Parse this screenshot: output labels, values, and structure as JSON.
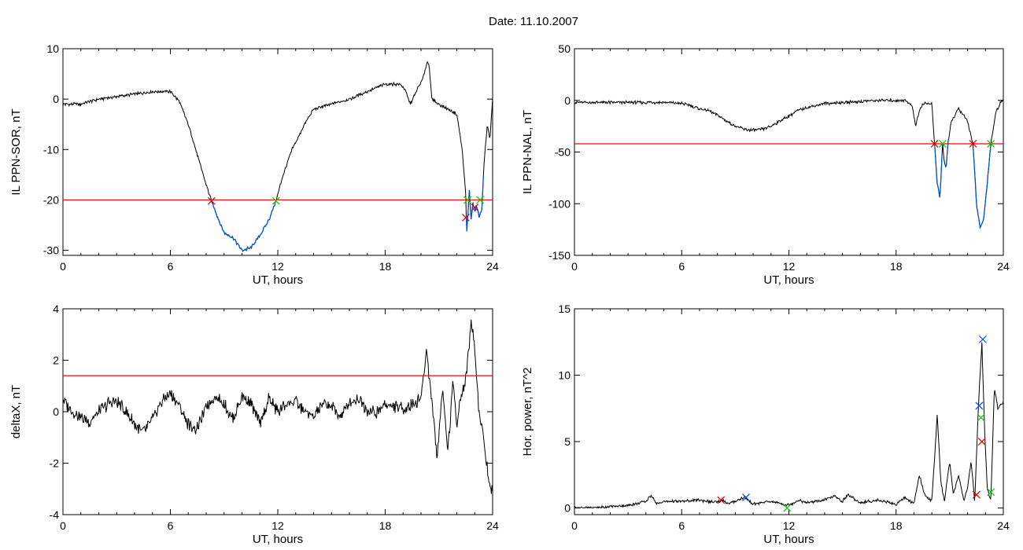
{
  "figure": {
    "title": "Date:  11.10.2007"
  },
  "colors": {
    "signal": "#000000",
    "threshold": "#ff0000",
    "event": "#0055cc",
    "marker_start": "#dd0000",
    "marker_end": "#00cc00",
    "marker_peak": "#0044ee"
  },
  "chart_data": [
    {
      "id": "p1",
      "type": "line",
      "xlabel": "UT, hours",
      "ylabel": "IL PPN-SOR, nT",
      "xlim": [
        0,
        24
      ],
      "ylim": [
        -31,
        10
      ],
      "xticks": [
        0,
        6,
        12,
        18,
        24
      ],
      "yticks": [
        -30,
        -20,
        -10,
        0,
        10
      ],
      "threshold": -20,
      "series": [
        {
          "x": [
            0,
            1,
            2,
            3,
            4,
            5,
            6,
            6.5,
            7,
            7.5,
            8,
            8.3,
            8.7,
            9,
            9.5,
            10,
            10.5,
            11,
            11.5,
            11.9,
            12.3,
            12.8,
            13.5,
            14,
            15,
            16,
            17,
            18,
            18.8,
            19.1,
            19.4,
            19.8,
            20.1,
            20.35,
            20.45,
            20.6,
            21,
            21.5,
            22,
            22.3,
            22.5,
            22.55,
            22.7,
            22.8,
            22.9,
            23.0,
            23.1,
            23.25,
            23.4,
            23.5,
            23.7,
            23.85,
            24
          ],
          "y": [
            -1,
            -1,
            0,
            0.5,
            1,
            1.5,
            1.5,
            -0.5,
            -5,
            -11,
            -17,
            -20.2,
            -24,
            -26.5,
            -27.5,
            -30,
            -29.5,
            -27,
            -24,
            -20.2,
            -15,
            -10,
            -5,
            -2,
            -1,
            0,
            1.5,
            3,
            3,
            2,
            -1,
            2,
            4,
            7.5,
            7,
            0,
            -1,
            -2,
            -3,
            -10,
            -19,
            -27,
            -18,
            -24,
            -20.5,
            -22.5,
            -21,
            -23.5,
            -22,
            -14,
            -5,
            -8,
            0
          ]
        }
      ],
      "event_ranges": [
        [
          8.3,
          11.9
        ],
        [
          22.5,
          23.5
        ]
      ],
      "markers": [
        {
          "type": "start",
          "x": 8.3,
          "y": -20.2
        },
        {
          "type": "end",
          "x": 11.9,
          "y": -20.2
        },
        {
          "type": "start",
          "x": 22.5,
          "y": -23.5
        },
        {
          "type": "end",
          "x": 22.6,
          "y": -20
        },
        {
          "type": "start",
          "x": 23.0,
          "y": -21.5
        },
        {
          "type": "end",
          "x": 23.3,
          "y": -20
        }
      ]
    },
    {
      "id": "p2",
      "type": "line",
      "xlabel": "UT, hours",
      "ylabel": "IL PPN-NAL, nT",
      "xlim": [
        0,
        24
      ],
      "ylim": [
        -150,
        50
      ],
      "xticks": [
        0,
        6,
        12,
        18,
        24
      ],
      "yticks": [
        -150,
        -100,
        -50,
        0,
        50
      ],
      "threshold": -42,
      "series": [
        {
          "x": [
            0,
            1,
            2,
            3,
            4,
            5,
            6,
            6.5,
            7,
            7.5,
            8,
            8.5,
            9,
            9.5,
            10,
            10.5,
            11,
            11.5,
            12,
            12.5,
            13,
            13.5,
            14,
            15,
            16,
            17,
            18,
            18.5,
            18.9,
            19.1,
            19.3,
            19.5,
            20,
            20.15,
            20.3,
            20.45,
            20.6,
            20.7,
            20.8,
            20.9,
            21.1,
            21.5,
            22,
            22.3,
            22.5,
            22.7,
            22.9,
            23.1,
            23.3,
            23.6,
            24
          ],
          "y": [
            -2,
            -2,
            -2,
            -2,
            -2,
            -2,
            -3,
            -5,
            -8,
            -10,
            -14,
            -20,
            -25,
            -28,
            -29,
            -28,
            -25,
            -20,
            -15,
            -10,
            -7,
            -5,
            -3,
            -2,
            -1,
            0,
            0,
            0,
            -5,
            -25,
            -10,
            -3,
            -3,
            -42,
            -80,
            -95,
            -42,
            -60,
            -65,
            -42,
            -20,
            -8,
            -20,
            -42,
            -100,
            -124,
            -115,
            -80,
            -42,
            -10,
            2
          ]
        }
      ],
      "event_ranges": [
        [
          20.15,
          20.6
        ],
        [
          20.75,
          20.95
        ],
        [
          22.3,
          23.3
        ]
      ],
      "markers": [
        {
          "type": "start",
          "x": 20.15,
          "y": -42
        },
        {
          "type": "end",
          "x": 20.6,
          "y": -42
        },
        {
          "type": "start",
          "x": 22.3,
          "y": -42
        },
        {
          "type": "end",
          "x": 23.3,
          "y": -42
        }
      ]
    },
    {
      "id": "p3",
      "type": "line",
      "xlabel": "UT, hours",
      "ylabel": "deltaX, nT",
      "xlim": [
        0,
        24
      ],
      "ylim": [
        -4,
        4
      ],
      "xticks": [
        0,
        6,
        12,
        18,
        24
      ],
      "yticks": [
        -4,
        -2,
        0,
        2,
        4
      ],
      "threshold": 1.4,
      "series": [
        {
          "x": [
            0,
            0.5,
            1,
            1.5,
            2,
            2.5,
            3,
            3.5,
            4,
            4.5,
            5,
            5.5,
            6,
            6.5,
            7,
            7.5,
            8,
            8.5,
            9,
            9.5,
            10,
            10.5,
            11,
            11.5,
            12,
            12.5,
            13,
            13.5,
            14,
            14.5,
            15,
            15.5,
            16,
            16.5,
            17,
            17.5,
            18,
            18.5,
            19,
            19.5,
            20,
            20.3,
            20.6,
            20.9,
            21.2,
            21.5,
            21.8,
            22.0,
            22.2,
            22.5,
            22.8,
            23.0,
            23.2,
            23.5,
            23.8,
            24
          ],
          "y": [
            0.5,
            0,
            -0.2,
            -0.4,
            0,
            0.3,
            0.4,
            0,
            -0.5,
            -0.8,
            -0.3,
            0.4,
            0.7,
            0.2,
            -0.5,
            -0.7,
            0.2,
            0.6,
            0.3,
            -0.3,
            0.6,
            0.3,
            -0.5,
            0.5,
            0,
            0.3,
            0.4,
            0,
            -0.2,
            0.3,
            0.2,
            -0.2,
            0.4,
            0.5,
            0.1,
            -0.1,
            0.3,
            0.2,
            0.1,
            0.3,
            0.5,
            2.4,
            0.5,
            -1.8,
            1.0,
            -1.5,
            1.2,
            -0.5,
            0.5,
            1.2,
            3.5,
            2.5,
            0.3,
            -1.0,
            -2.8,
            -3.0
          ]
        }
      ],
      "event_ranges": [],
      "markers": []
    },
    {
      "id": "p4",
      "type": "line",
      "xlabel": "UT, hours",
      "ylabel": "Hor. power, nT^2",
      "xlim": [
        0,
        24
      ],
      "ylim": [
        -0.5,
        15
      ],
      "xticks": [
        0,
        6,
        12,
        18,
        24
      ],
      "yticks": [
        0,
        5,
        10,
        15
      ],
      "threshold": null,
      "series": [
        {
          "x": [
            0,
            1,
            2,
            3,
            4,
            4.3,
            4.6,
            5,
            6,
            7,
            8,
            8.3,
            8.6,
            9,
            9.5,
            10,
            11,
            12,
            12.5,
            13,
            14,
            14.5,
            15,
            15.3,
            16,
            17,
            18,
            18.5,
            19,
            19.3,
            19.6,
            20,
            20.3,
            20.5,
            20.7,
            21,
            21.2,
            21.5,
            21.8,
            22,
            22.2,
            22.4,
            22.6,
            22.8,
            22.95,
            23.1,
            23.3,
            23.5,
            23.7,
            24
          ],
          "y": [
            0,
            0,
            0.1,
            0.2,
            0.5,
            1.0,
            0.3,
            0.5,
            0.5,
            0.6,
            0.4,
            0.6,
            0.3,
            0.5,
            0.8,
            0.3,
            0.5,
            0.2,
            0.6,
            0.4,
            0.6,
            0.9,
            0.5,
            1.0,
            0.4,
            0.6,
            0.3,
            0.8,
            0.3,
            2.5,
            1.0,
            0.5,
            7.0,
            2.0,
            0.5,
            3.5,
            1.0,
            2.5,
            0.5,
            1.5,
            3.5,
            0.5,
            7.5,
            12.5,
            6.0,
            1.5,
            0.5,
            9.0,
            7.5,
            8.0
          ]
        }
      ],
      "event_ranges": [],
      "markers": [
        {
          "type": "start",
          "x": 8.2,
          "y": 0.6
        },
        {
          "type": "peak",
          "x": 9.6,
          "y": 0.8
        },
        {
          "type": "end",
          "x": 11.9,
          "y": 0
        },
        {
          "type": "start",
          "x": 22.5,
          "y": 1.0
        },
        {
          "type": "peak",
          "x": 22.65,
          "y": 7.7
        },
        {
          "type": "end",
          "x": 22.75,
          "y": 6.8
        },
        {
          "type": "start",
          "x": 22.8,
          "y": 5.0
        },
        {
          "type": "peak",
          "x": 22.85,
          "y": 12.7
        },
        {
          "type": "end",
          "x": 23.3,
          "y": 1.2
        }
      ]
    }
  ]
}
